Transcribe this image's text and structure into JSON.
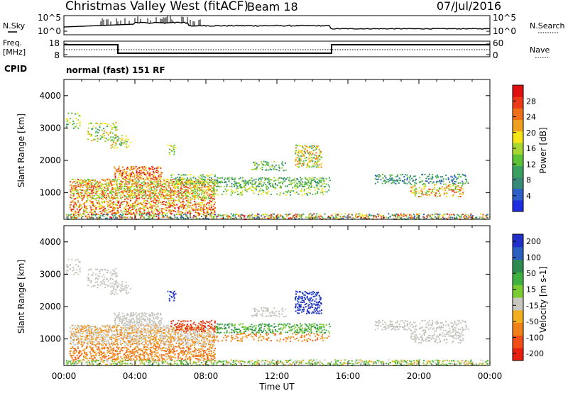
{
  "header": {
    "station": "Christmas Valley West (fitACF)",
    "beam": "Beam 18",
    "date": "07/Jul/2016"
  },
  "nsky_panel": {
    "left_label": "N.Sky",
    "right_label": "N.Search",
    "left_ticks": [
      "10^5",
      "10^0"
    ],
    "right_ticks": [
      "10^5",
      "10^0"
    ]
  },
  "freq_panel": {
    "left_label_1": "Freq.",
    "left_label_2": "[MHz]",
    "right_label": "Nave",
    "left_ticks": [
      "18",
      "8"
    ],
    "right_ticks": [
      "60",
      "0"
    ]
  },
  "cpid": {
    "label": "CPID",
    "value": "normal (fast) 151 RF"
  },
  "chart_data": [
    {
      "type": "heatmap",
      "name": "power",
      "ylabel": "Slant Range [km]",
      "yticks": [
        "1000",
        "2000",
        "3000",
        "4000"
      ],
      "ylim": [
        180,
        4500
      ],
      "colorbar_label": "Power [dB]",
      "colorbar_ticks": [
        "4",
        "8",
        "12",
        "16",
        "20",
        "24",
        "28"
      ],
      "colors": [
        "#1c2ee0",
        "#2e5fc8",
        "#3a8a78",
        "#3aa060",
        "#5cc238",
        "#a8d630",
        "#f6e418",
        "#f0a020",
        "#f07018",
        "#ea3a1a",
        "#e01010"
      ]
    },
    {
      "type": "heatmap",
      "name": "velocity",
      "ylabel": "Slant Range [km]",
      "xlabel": "Time UT",
      "xticks": [
        "00:00",
        "04:00",
        "08:00",
        "12:00",
        "16:00",
        "20:00",
        "00:00"
      ],
      "yticks": [
        "1000",
        "2000",
        "3000",
        "4000"
      ],
      "ylim": [
        180,
        4500
      ],
      "colorbar_label": "Velocity [m s-1]",
      "colorbar_ticks": [
        "200",
        "100",
        "50",
        "15",
        "-15",
        "-50",
        "-100",
        "-200"
      ],
      "colors": [
        "#2030c8",
        "#2a60c0",
        "#2e8a50",
        "#40b040",
        "#7acc30",
        "#c8c8c0",
        "#f0b020",
        "#f08018",
        "#f05018",
        "#e82010"
      ]
    }
  ]
}
